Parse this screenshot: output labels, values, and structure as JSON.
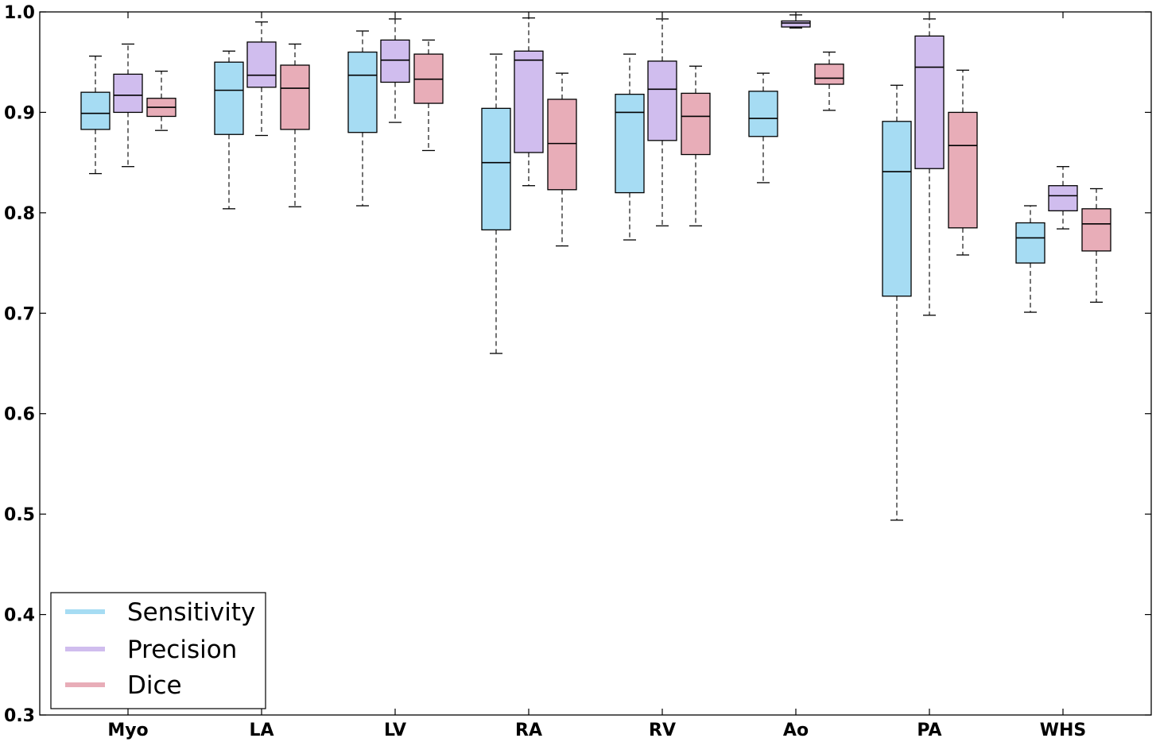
{
  "chart_data": {
    "type": "boxplot",
    "title": "",
    "xlabel": "",
    "ylabel": "",
    "ylim": [
      0.3,
      1.0
    ],
    "yticks": [
      0.3,
      0.4,
      0.5,
      0.6,
      0.7,
      0.8,
      0.9,
      1.0
    ],
    "ytick_labels": [
      "0.3",
      "0.4",
      "0.5",
      "0.6",
      "0.7",
      "0.8",
      "0.9",
      "1.0"
    ],
    "grid": false,
    "legend_position": "bottom-left",
    "categories": [
      "Myo",
      "LA",
      "LV",
      "RA",
      "RV",
      "Ao",
      "PA",
      "WHS"
    ],
    "series": [
      {
        "name": "Sensitivity",
        "color": "#a6dcf3",
        "boxes": [
          {
            "whisker_low": 0.839,
            "q1": 0.883,
            "median": 0.899,
            "q3": 0.92,
            "whisker_high": 0.956
          },
          {
            "whisker_low": 0.804,
            "q1": 0.878,
            "median": 0.922,
            "q3": 0.95,
            "whisker_high": 0.961
          },
          {
            "whisker_low": 0.807,
            "q1": 0.88,
            "median": 0.937,
            "q3": 0.96,
            "whisker_high": 0.981
          },
          {
            "whisker_low": 0.66,
            "q1": 0.783,
            "median": 0.85,
            "q3": 0.904,
            "whisker_high": 0.958
          },
          {
            "whisker_low": 0.773,
            "q1": 0.82,
            "median": 0.9,
            "q3": 0.918,
            "whisker_high": 0.958
          },
          {
            "whisker_low": 0.83,
            "q1": 0.876,
            "median": 0.894,
            "q3": 0.921,
            "whisker_high": 0.939
          },
          {
            "whisker_low": 0.494,
            "q1": 0.717,
            "median": 0.841,
            "q3": 0.891,
            "whisker_high": 0.927
          },
          {
            "whisker_low": 0.701,
            "q1": 0.75,
            "median": 0.775,
            "q3": 0.79,
            "whisker_high": 0.807
          }
        ]
      },
      {
        "name": "Precision",
        "color": "#d0bdee",
        "boxes": [
          {
            "whisker_low": 0.846,
            "q1": 0.9,
            "median": 0.917,
            "q3": 0.938,
            "whisker_high": 0.968
          },
          {
            "whisker_low": 0.877,
            "q1": 0.925,
            "median": 0.937,
            "q3": 0.97,
            "whisker_high": 0.99
          },
          {
            "whisker_low": 0.89,
            "q1": 0.93,
            "median": 0.952,
            "q3": 0.972,
            "whisker_high": 0.993
          },
          {
            "whisker_low": 0.827,
            "q1": 0.86,
            "median": 0.952,
            "q3": 0.961,
            "whisker_high": 0.994
          },
          {
            "whisker_low": 0.787,
            "q1": 0.872,
            "median": 0.923,
            "q3": 0.951,
            "whisker_high": 0.993
          },
          {
            "whisker_low": 0.984,
            "q1": 0.985,
            "median": 0.989,
            "q3": 0.991,
            "whisker_high": 0.997
          },
          {
            "whisker_low": 0.698,
            "q1": 0.844,
            "median": 0.945,
            "q3": 0.976,
            "whisker_high": 0.993
          },
          {
            "whisker_low": 0.784,
            "q1": 0.802,
            "median": 0.817,
            "q3": 0.827,
            "whisker_high": 0.846
          }
        ]
      },
      {
        "name": "Dice",
        "color": "#e8adb8",
        "boxes": [
          {
            "whisker_low": 0.882,
            "q1": 0.896,
            "median": 0.905,
            "q3": 0.914,
            "whisker_high": 0.941
          },
          {
            "whisker_low": 0.806,
            "q1": 0.883,
            "median": 0.924,
            "q3": 0.947,
            "whisker_high": 0.968
          },
          {
            "whisker_low": 0.862,
            "q1": 0.909,
            "median": 0.933,
            "q3": 0.958,
            "whisker_high": 0.972
          },
          {
            "whisker_low": 0.767,
            "q1": 0.823,
            "median": 0.869,
            "q3": 0.913,
            "whisker_high": 0.939
          },
          {
            "whisker_low": 0.787,
            "q1": 0.858,
            "median": 0.896,
            "q3": 0.919,
            "whisker_high": 0.946
          },
          {
            "whisker_low": 0.902,
            "q1": 0.928,
            "median": 0.934,
            "q3": 0.948,
            "whisker_high": 0.96
          },
          {
            "whisker_low": 0.758,
            "q1": 0.785,
            "median": 0.867,
            "q3": 0.9,
            "whisker_high": 0.942
          },
          {
            "whisker_low": 0.711,
            "q1": 0.762,
            "median": 0.789,
            "q3": 0.804,
            "whisker_high": 0.824
          }
        ]
      }
    ]
  }
}
